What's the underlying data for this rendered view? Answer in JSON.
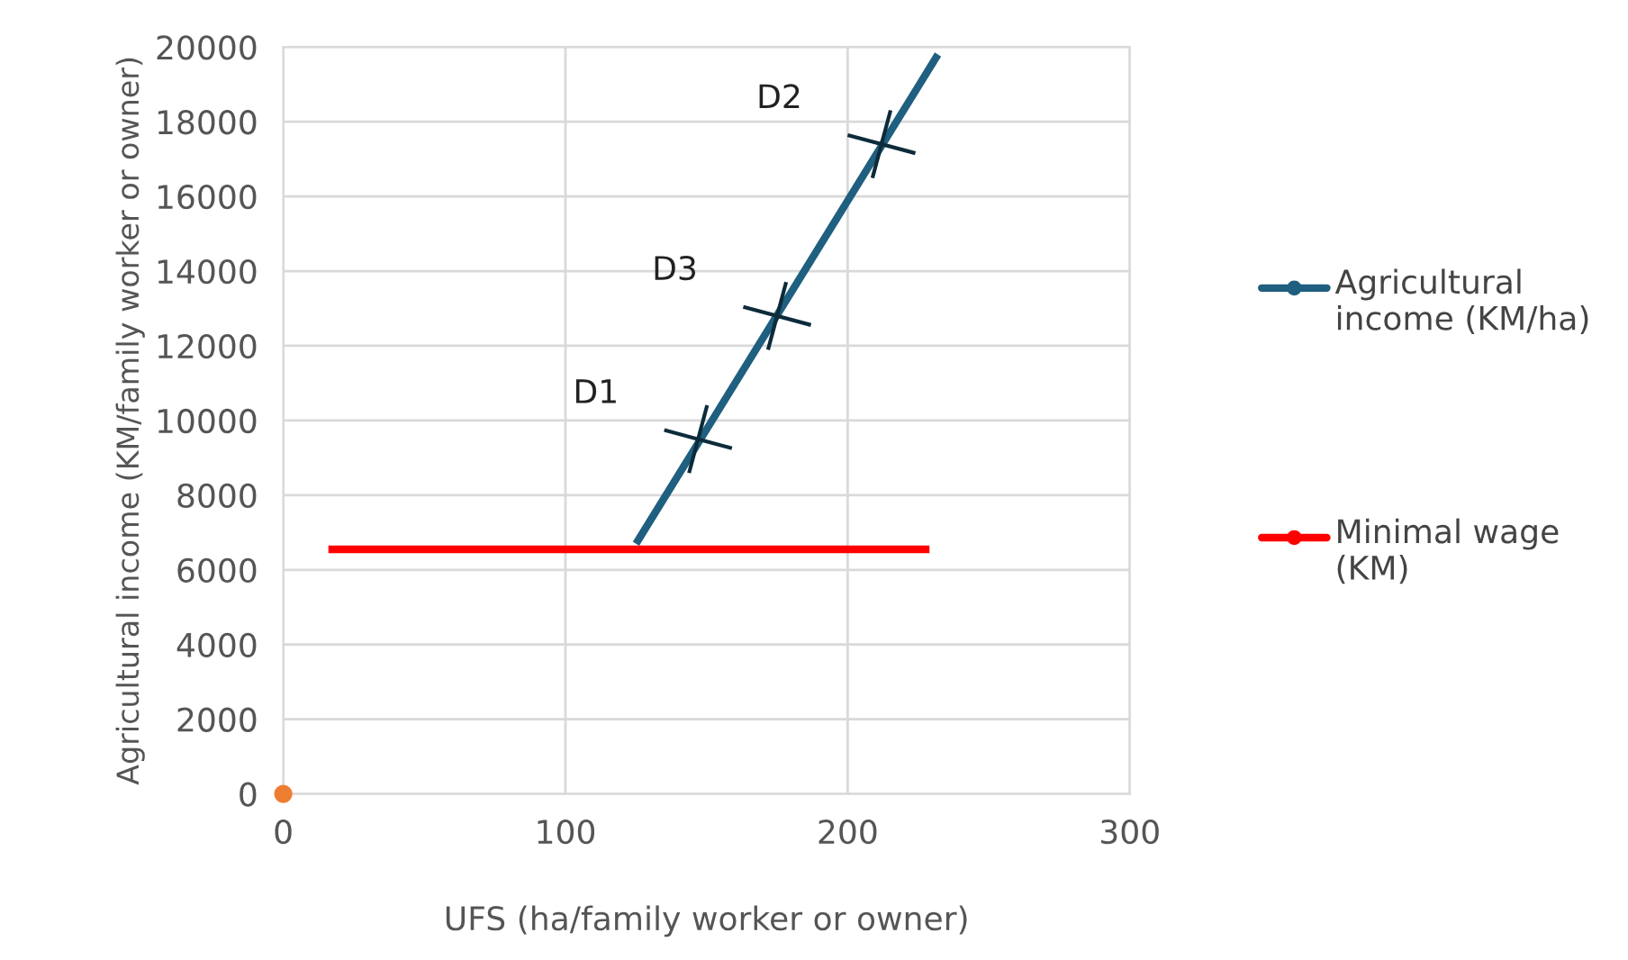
{
  "chart_data": {
    "type": "line",
    "xlabel": "UFS (ha/family worker or owner)",
    "ylabel": "Agricultural income (KM/family worker or owner)",
    "series": [
      {
        "name": "Agricultural income (KM/ha)",
        "color": "#1f5f7f",
        "x": [
          125,
          232
        ],
        "values": [
          6700,
          19800
        ]
      },
      {
        "name": "Minimal wage (KM)",
        "color": "#ff0000",
        "x": [
          16,
          229
        ],
        "values": [
          6550,
          6550
        ]
      },
      {
        "type": "scatter",
        "color": "#ed7d31",
        "x": [
          0
        ],
        "values": [
          0
        ]
      }
    ],
    "annotations": [
      {
        "text": "D1",
        "x": 147,
        "y": 9500
      },
      {
        "text": "D3",
        "x": 175,
        "y": 12800
      },
      {
        "text": "D2",
        "x": 212,
        "y": 17400
      }
    ],
    "xlim": [
      0,
      300
    ],
    "xticks": [
      0,
      100,
      200,
      300
    ],
    "ylim": [
      0,
      20000
    ],
    "yticks": [
      0,
      2000,
      4000,
      6000,
      8000,
      10000,
      12000,
      14000,
      16000,
      18000,
      20000
    ],
    "grid": true,
    "legend": "right"
  }
}
